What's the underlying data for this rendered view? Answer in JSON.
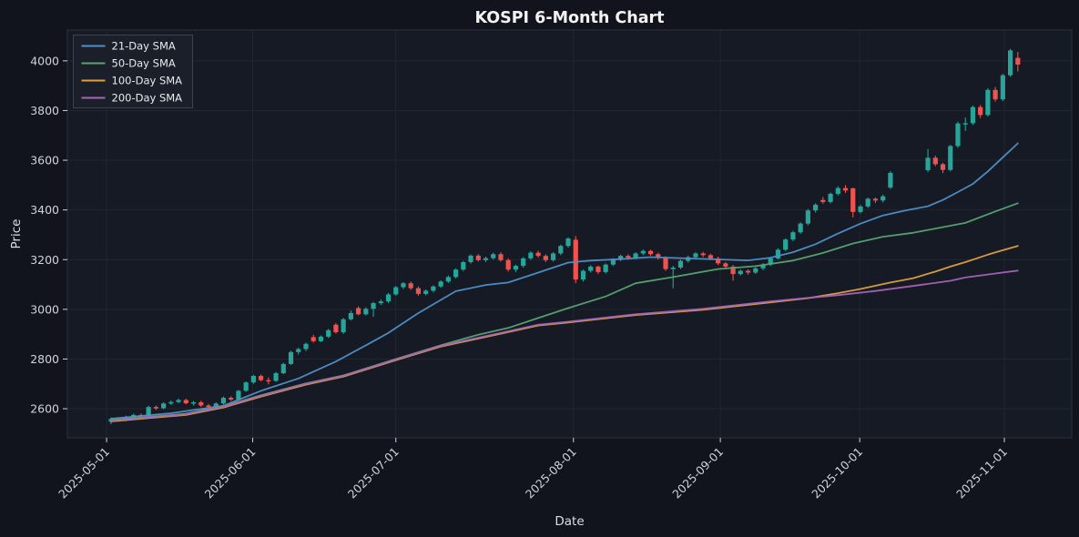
{
  "title": "KOSPI 6-Month Chart",
  "colors": {
    "background": "#11141c",
    "plot_background": "#151a24",
    "grid": "#212631",
    "spine": "#2c323e",
    "title_text": "#f2f2f2",
    "tick_text": "#cfd3da",
    "axis_label_text": "#dcdee3",
    "candle_up": "#26a69a",
    "candle_down": "#ef5350",
    "legend_background": "#1a1f2a",
    "legend_border": "#3c4250"
  },
  "legend": {
    "items": [
      {
        "label": "21-Day SMA",
        "color": "#5090c9"
      },
      {
        "label": "50-Day SMA",
        "color": "#58a472"
      },
      {
        "label": "100-Day SMA",
        "color": "#dfa040"
      },
      {
        "label": "200-Day SMA",
        "color": "#a864b8"
      }
    ]
  },
  "chart_data": {
    "type": "candlestick",
    "title": "KOSPI 6-Month Chart",
    "xlabel": "Date",
    "ylabel": "Price",
    "ylim": [
      2483,
      4124
    ],
    "yticks": [
      2600,
      2800,
      3000,
      3200,
      3400,
      3600,
      3800,
      4000
    ],
    "xticks": [
      {
        "label": "2025-05-01",
        "idx": -0.6
      },
      {
        "label": "2025-06-01",
        "idx": 18.9
      },
      {
        "label": "2025-07-01",
        "idx": 38.0
      },
      {
        "label": "2025-08-01",
        "idx": 61.7
      },
      {
        "label": "2025-09-01",
        "idx": 81.3
      },
      {
        "label": "2025-10-01",
        "idx": 99.9
      },
      {
        "label": "2025-11-01",
        "idx": 119.2
      }
    ],
    "n_slots": 122,
    "candles_note": "arrays are [open, high, low, close]; null = market holiday gap",
    "candles": [
      [
        2548,
        2565,
        2538,
        2559
      ],
      [
        2559,
        2564,
        2548,
        2554
      ],
      [
        2554,
        2572,
        2550,
        2566
      ],
      [
        2566,
        2580,
        2561,
        2575
      ],
      [
        2575,
        2581,
        2563,
        2569
      ],
      [
        2570,
        2612,
        2566,
        2607
      ],
      [
        2607,
        2613,
        2595,
        2601
      ],
      [
        2602,
        2626,
        2598,
        2621
      ],
      [
        2621,
        2633,
        2615,
        2627
      ],
      [
        2627,
        2641,
        2622,
        2635
      ],
      [
        2635,
        2640,
        2617,
        2622
      ],
      [
        2622,
        2631,
        2614,
        2626
      ],
      [
        2626,
        2632,
        2607,
        2613
      ],
      [
        2613,
        2619,
        2600,
        2607
      ],
      [
        2607,
        2626,
        2603,
        2621
      ],
      [
        2621,
        2649,
        2617,
        2644
      ],
      [
        2644,
        2650,
        2631,
        2637
      ],
      [
        2637,
        2676,
        2633,
        2672
      ],
      [
        2672,
        2710,
        2668,
        2706
      ],
      [
        2706,
        2736,
        2700,
        2732
      ],
      [
        2732,
        2738,
        2710,
        2715
      ],
      [
        2715,
        2726,
        2698,
        2712
      ],
      [
        2712,
        2748,
        2708,
        2743
      ],
      [
        2743,
        2785,
        2739,
        2780
      ],
      [
        2780,
        2833,
        2776,
        2828
      ],
      [
        2828,
        2846,
        2818,
        2840
      ],
      [
        2840,
        2866,
        2832,
        2861
      ],
      [
        2888,
        2898,
        2866,
        2872
      ],
      [
        2872,
        2895,
        2868,
        2890
      ],
      [
        2890,
        2921,
        2884,
        2916
      ],
      [
        2938,
        2945,
        2902,
        2908
      ],
      [
        2908,
        2965,
        2901,
        2960
      ],
      [
        2960,
        2995,
        2955,
        2985
      ],
      [
        3005,
        3012,
        2976,
        2980
      ],
      [
        2980,
        3008,
        2975,
        3002
      ],
      [
        3002,
        3030,
        2970,
        3025
      ],
      [
        3025,
        3040,
        3018,
        3032
      ],
      [
        3032,
        3066,
        3026,
        3060
      ],
      [
        3060,
        3094,
        3055,
        3089
      ],
      [
        3089,
        3110,
        3082,
        3105
      ],
      [
        3105,
        3112,
        3078,
        3085
      ],
      [
        3085,
        3092,
        3055,
        3062
      ],
      [
        3062,
        3080,
        3056,
        3075
      ],
      [
        3075,
        3097,
        3068,
        3092
      ],
      [
        3092,
        3117,
        3086,
        3112
      ],
      [
        3112,
        3136,
        3106,
        3130
      ],
      [
        3130,
        3165,
        3124,
        3160
      ],
      [
        3160,
        3195,
        3154,
        3190
      ],
      [
        3190,
        3221,
        3184,
        3216
      ],
      [
        3216,
        3222,
        3192,
        3198
      ],
      [
        3198,
        3212,
        3190,
        3206
      ],
      [
        3206,
        3228,
        3200,
        3222
      ],
      [
        3222,
        3230,
        3192,
        3198
      ],
      [
        3198,
        3205,
        3152,
        3160
      ],
      [
        3160,
        3180,
        3150,
        3175
      ],
      [
        3175,
        3210,
        3168,
        3205
      ],
      [
        3205,
        3234,
        3199,
        3228
      ],
      [
        3228,
        3236,
        3208,
        3215
      ],
      [
        3215,
        3222,
        3190,
        3198
      ],
      [
        3198,
        3230,
        3192,
        3225
      ],
      [
        3225,
        3260,
        3218,
        3255
      ],
      [
        3255,
        3290,
        3248,
        3285
      ],
      [
        3280,
        3295,
        3105,
        3120
      ],
      [
        3120,
        3160,
        3112,
        3155
      ],
      [
        3155,
        3178,
        3148,
        3172
      ],
      [
        3172,
        3176,
        3142,
        3150
      ],
      [
        3150,
        3185,
        3144,
        3180
      ],
      [
        3180,
        3206,
        3174,
        3200
      ],
      [
        3200,
        3220,
        3194,
        3215
      ],
      [
        3215,
        3221,
        3200,
        3208
      ],
      [
        3208,
        3230,
        3202,
        3225
      ],
      [
        3225,
        3241,
        3218,
        3235
      ],
      [
        3235,
        3240,
        3216,
        3222
      ],
      [
        3222,
        3228,
        3200,
        3208
      ],
      [
        3208,
        3214,
        3155,
        3162
      ],
      [
        3162,
        3175,
        3085,
        3168
      ],
      [
        3168,
        3200,
        3162,
        3195
      ],
      [
        3195,
        3216,
        3188,
        3210
      ],
      [
        3210,
        3230,
        3204,
        3225
      ],
      [
        3225,
        3231,
        3210,
        3218
      ],
      [
        3218,
        3224,
        3198,
        3205
      ],
      [
        3205,
        3212,
        3178,
        3185
      ],
      [
        3185,
        3190,
        3165,
        3172
      ],
      [
        3172,
        3178,
        3115,
        3142
      ],
      [
        3142,
        3160,
        3136,
        3155
      ],
      [
        3155,
        3161,
        3140,
        3148
      ],
      [
        3148,
        3170,
        3142,
        3165
      ],
      [
        3165,
        3186,
        3158,
        3180
      ],
      [
        3180,
        3210,
        3174,
        3205
      ],
      [
        3205,
        3246,
        3200,
        3240
      ],
      [
        3240,
        3286,
        3234,
        3281
      ],
      [
        3281,
        3316,
        3274,
        3310
      ],
      [
        3310,
        3350,
        3304,
        3345
      ],
      [
        3345,
        3404,
        3338,
        3398
      ],
      [
        3398,
        3427,
        3390,
        3421
      ],
      [
        3440,
        3452,
        3425,
        3432
      ],
      [
        3432,
        3470,
        3426,
        3465
      ],
      [
        3465,
        3495,
        3458,
        3488
      ],
      [
        3488,
        3500,
        3468,
        3478
      ],
      [
        3487,
        3490,
        3370,
        3392
      ],
      [
        3392,
        3420,
        3386,
        3414
      ],
      [
        3414,
        3450,
        3408,
        3445
      ],
      [
        3445,
        3450,
        3428,
        3438
      ],
      [
        3438,
        3462,
        3430,
        3455
      ],
      [
        3490,
        3556,
        3484,
        3549
      ],
      null,
      null,
      null,
      null,
      [
        3560,
        3645,
        3552,
        3610
      ],
      [
        3610,
        3618,
        3576,
        3584
      ],
      [
        3584,
        3590,
        3548,
        3561
      ],
      [
        3561,
        3662,
        3555,
        3657
      ],
      [
        3657,
        3755,
        3650,
        3748
      ],
      [
        3748,
        3772,
        3718,
        3749
      ],
      [
        3749,
        3820,
        3742,
        3814
      ],
      [
        3814,
        3822,
        3770,
        3782
      ],
      [
        3782,
        3890,
        3776,
        3883
      ],
      [
        3883,
        3895,
        3836,
        3845
      ],
      [
        3845,
        3948,
        3838,
        3942
      ],
      [
        3942,
        4048,
        3936,
        4042
      ],
      [
        4012,
        4036,
        3958,
        3985
      ]
    ],
    "sma_series": [
      {
        "name": "21-Day SMA",
        "color": "#5090c9",
        "points": [
          [
            0,
            2560
          ],
          [
            8,
            2582
          ],
          [
            15,
            2612
          ],
          [
            20,
            2672
          ],
          [
            25,
            2722
          ],
          [
            30,
            2790
          ],
          [
            34,
            2855
          ],
          [
            37,
            2905
          ],
          [
            41,
            2985
          ],
          [
            46,
            3073
          ],
          [
            50,
            3098
          ],
          [
            53,
            3108
          ],
          [
            57,
            3148
          ],
          [
            61,
            3188
          ],
          [
            64,
            3196
          ],
          [
            68,
            3202
          ],
          [
            72,
            3210
          ],
          [
            76,
            3206
          ],
          [
            81,
            3201
          ],
          [
            85,
            3197
          ],
          [
            88,
            3208
          ],
          [
            91,
            3230
          ],
          [
            94,
            3262
          ],
          [
            97,
            3305
          ],
          [
            100,
            3345
          ],
          [
            103,
            3378
          ],
          [
            106,
            3398
          ],
          [
            109,
            3415
          ],
          [
            111,
            3440
          ],
          [
            113,
            3472
          ],
          [
            115,
            3505
          ],
          [
            117,
            3555
          ],
          [
            119,
            3612
          ],
          [
            121,
            3668
          ]
        ]
      },
      {
        "name": "50-Day SMA",
        "color": "#58a472",
        "points": [
          [
            0,
            2556
          ],
          [
            5,
            2567
          ],
          [
            10,
            2580
          ],
          [
            15,
            2610
          ],
          [
            20,
            2654
          ],
          [
            26,
            2702
          ],
          [
            31,
            2734
          ],
          [
            38,
            2800
          ],
          [
            44,
            2855
          ],
          [
            49,
            2898
          ],
          [
            53,
            2925
          ],
          [
            57,
            2965
          ],
          [
            61,
            3005
          ],
          [
            66,
            3052
          ],
          [
            70,
            3105
          ],
          [
            75,
            3130
          ],
          [
            81,
            3162
          ],
          [
            86,
            3174
          ],
          [
            91,
            3196
          ],
          [
            95,
            3227
          ],
          [
            99,
            3265
          ],
          [
            103,
            3292
          ],
          [
            107,
            3308
          ],
          [
            110,
            3325
          ],
          [
            114,
            3348
          ],
          [
            118,
            3394
          ],
          [
            121,
            3427
          ]
        ]
      },
      {
        "name": "100-Day SMA",
        "color": "#dfa040",
        "points": [
          [
            0,
            2549
          ],
          [
            5,
            2562
          ],
          [
            10,
            2575
          ],
          [
            15,
            2605
          ],
          [
            20,
            2649
          ],
          [
            26,
            2697
          ],
          [
            31,
            2729
          ],
          [
            38,
            2795
          ],
          [
            44,
            2850
          ],
          [
            52,
            2902
          ],
          [
            57,
            2935
          ],
          [
            61,
            2947
          ],
          [
            70,
            2977
          ],
          [
            79,
            2998
          ],
          [
            88,
            3028
          ],
          [
            93,
            3045
          ],
          [
            97,
            3065
          ],
          [
            100,
            3082
          ],
          [
            104,
            3108
          ],
          [
            107,
            3125
          ],
          [
            110,
            3152
          ],
          [
            112,
            3172
          ],
          [
            114,
            3190
          ],
          [
            117,
            3220
          ],
          [
            119,
            3238
          ],
          [
            121,
            3255
          ]
        ]
      },
      {
        "name": "200-Day SMA",
        "color": "#a864b8",
        "points": [
          [
            0,
            2552
          ],
          [
            5,
            2565
          ],
          [
            10,
            2578
          ],
          [
            15,
            2608
          ],
          [
            20,
            2652
          ],
          [
            26,
            2700
          ],
          [
            31,
            2732
          ],
          [
            38,
            2798
          ],
          [
            44,
            2853
          ],
          [
            52,
            2905
          ],
          [
            57,
            2938
          ],
          [
            61,
            2950
          ],
          [
            70,
            2980
          ],
          [
            79,
            3002
          ],
          [
            88,
            3032
          ],
          [
            97,
            3057
          ],
          [
            102,
            3074
          ],
          [
            107,
            3094
          ],
          [
            112,
            3115
          ],
          [
            114,
            3128
          ],
          [
            118,
            3144
          ],
          [
            121,
            3156
          ]
        ]
      }
    ]
  }
}
